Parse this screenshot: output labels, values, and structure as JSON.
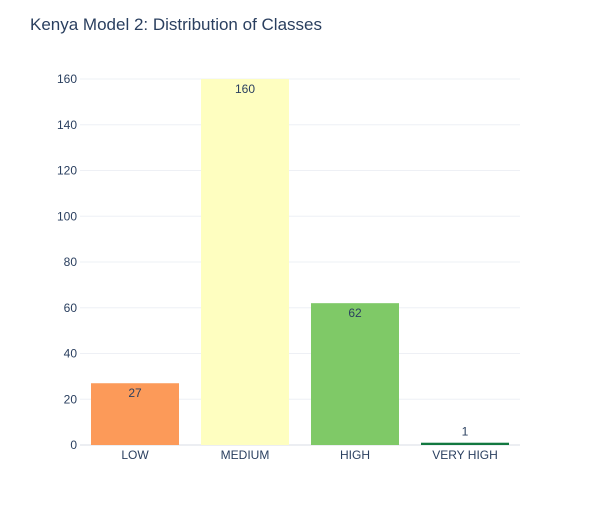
{
  "chart_data": {
    "type": "bar",
    "title": "Kenya Model 2: Distribution of Classes",
    "xlabel": "",
    "ylabel": "",
    "categories": [
      "LOW",
      "MEDIUM",
      "HIGH",
      "VERY HIGH"
    ],
    "values": [
      27,
      160,
      62,
      1
    ],
    "data_labels": [
      "27",
      "160",
      "62",
      "1"
    ],
    "colors": [
      "#fc9a59",
      "#fefec0",
      "#7fc967",
      "#12783f"
    ],
    "ylim": [
      0,
      160
    ],
    "yticks": [
      0,
      20,
      40,
      60,
      80,
      100,
      120,
      140,
      160
    ],
    "grid": true,
    "legend": "none"
  }
}
